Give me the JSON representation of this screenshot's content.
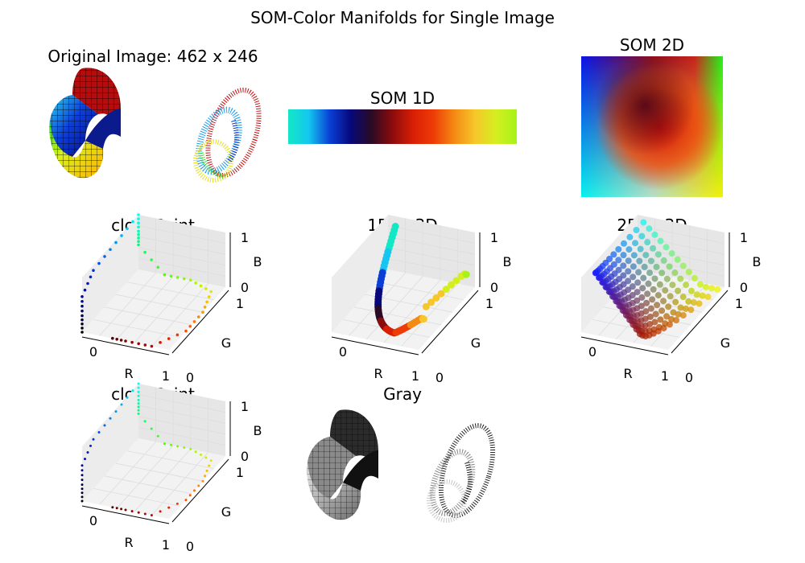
{
  "figure_title": "SOM-Color Manifolds for Single Image",
  "panels": {
    "original": {
      "title": "Original Image: 462 x 246"
    },
    "som1d": {
      "title": "SOM 1D",
      "gradient_colors": [
        "#13e8c6",
        "#14c6f0",
        "#0a3fd6",
        "#06087a",
        "#2a0a24",
        "#8b0c0c",
        "#d81e05",
        "#ee3c06",
        "#f48a14",
        "#f6c72a",
        "#d4ef20",
        "#a6f21a"
      ]
    },
    "som2d": {
      "title": "SOM 2D",
      "corner_colors": {
        "top_left": "#0a12e8",
        "top_right": "#1ff21c",
        "bottom_left": "#05f1ee",
        "bottom_right": "#f3f005",
        "center": "#c21406"
      }
    },
    "cloud1": {
      "title": "cloudPoint"
    },
    "line3d": {
      "title": "1D in 3D"
    },
    "surf3d": {
      "title": "2D in 3D"
    },
    "cloud2": {
      "title": "cloudPoint"
    },
    "gray": {
      "title": "Gray"
    }
  },
  "axes3d": {
    "xlabel": "R",
    "ylabel": "G",
    "zlabel": "B",
    "x_ticks": [
      "0",
      "1"
    ],
    "y_ticks": [
      "0",
      "1"
    ],
    "z_ticks": [
      "0",
      "1"
    ]
  },
  "chart_data": [
    {
      "type": "image",
      "title": "Original Image: 462 x 246"
    },
    {
      "type": "heatmap",
      "title": "SOM 1D",
      "shape": [
        1,
        12
      ]
    },
    {
      "type": "heatmap",
      "title": "SOM 2D"
    },
    {
      "type": "scatter",
      "title": "cloudPoint",
      "xlabel": "R",
      "ylabel": "G",
      "zlabel": "B",
      "xlim": [
        0,
        1
      ],
      "ylim": [
        0,
        1
      ],
      "zlim": [
        0,
        1
      ],
      "points": [
        [
          0.0,
          0.0,
          0.0
        ],
        [
          0.0,
          0.0,
          0.3
        ],
        [
          0.0,
          0.0,
          0.65
        ],
        [
          0.0,
          0.2,
          0.9
        ],
        [
          0.0,
          0.6,
          0.95
        ],
        [
          0.0,
          1.0,
          1.0
        ],
        [
          0.0,
          1.0,
          0.7
        ],
        [
          0.0,
          1.0,
          0.45
        ],
        [
          0.3,
          1.0,
          0.0
        ],
        [
          0.6,
          1.0,
          0.0
        ],
        [
          0.9,
          0.9,
          0.0
        ],
        [
          1.0,
          0.6,
          0.0
        ],
        [
          1.0,
          0.3,
          0.0
        ],
        [
          0.8,
          0.0,
          0.0
        ],
        [
          0.5,
          0.0,
          0.0
        ],
        [
          0.3,
          0.0,
          0.0
        ]
      ]
    },
    {
      "type": "line",
      "title": "1D in 3D",
      "xlabel": "R",
      "ylabel": "G",
      "zlabel": "B",
      "xlim": [
        0,
        1
      ],
      "ylim": [
        0,
        1
      ],
      "zlim": [
        0,
        1
      ]
    },
    {
      "type": "scatter",
      "title": "2D in 3D",
      "xlabel": "R",
      "ylabel": "G",
      "zlabel": "B",
      "xlim": [
        0,
        1
      ],
      "ylim": [
        0,
        1
      ],
      "zlim": [
        0,
        1
      ]
    },
    {
      "type": "scatter",
      "title": "cloudPoint",
      "xlabel": "R",
      "ylabel": "G",
      "zlabel": "B",
      "xlim": [
        0,
        1
      ],
      "ylim": [
        0,
        1
      ],
      "zlim": [
        0,
        1
      ]
    },
    {
      "type": "image",
      "title": "Gray"
    }
  ]
}
